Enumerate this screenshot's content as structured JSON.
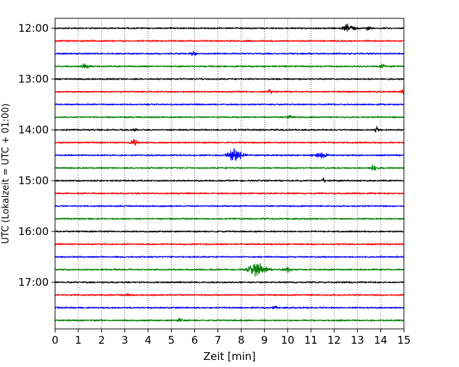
{
  "chart_data": {
    "type": "line",
    "title": "",
    "xlabel": "Zeit  [min]",
    "ylabel": "UTC (Lokalzeit = UTC + 01:00)",
    "xlim": [
      0,
      15
    ],
    "x_ticks": [
      "0",
      "1",
      "2",
      "3",
      "4",
      "5",
      "6",
      "7",
      "8",
      "9",
      "10",
      "11",
      "12",
      "13",
      "14",
      "15"
    ],
    "y_ticks": [
      "12:00",
      "13:00",
      "14:00",
      "15:00",
      "16:00",
      "17:00"
    ],
    "y_tick_traces": [
      0,
      4,
      8,
      12,
      16,
      20
    ],
    "grid": "vertical dotted lines at every minute",
    "trace_interval_minutes": 15,
    "start_time": "12:00",
    "trace_colors": [
      "#000000",
      "#ff0000",
      "#0000ff",
      "#008000"
    ],
    "traces": [
      {
        "start": "12:00",
        "color": "#000000",
        "events": [
          {
            "t": 12.5,
            "amp": 1.0,
            "dur": 0.6
          },
          {
            "t": 13.4,
            "amp": 0.4,
            "dur": 0.3
          }
        ]
      },
      {
        "start": "12:15",
        "color": "#ff0000",
        "events": []
      },
      {
        "start": "12:30",
        "color": "#0000ff",
        "events": [
          {
            "t": 5.9,
            "amp": 0.5,
            "dur": 0.3
          }
        ]
      },
      {
        "start": "12:45",
        "color": "#008000",
        "events": [
          {
            "t": 1.2,
            "amp": 0.6,
            "dur": 0.4
          },
          {
            "t": 14.0,
            "amp": 0.4,
            "dur": 0.3
          }
        ]
      },
      {
        "start": "13:00",
        "color": "#000000",
        "events": []
      },
      {
        "start": "13:15",
        "color": "#ff0000",
        "events": [
          {
            "t": 9.2,
            "amp": 0.7,
            "dur": 0.2
          },
          {
            "t": 14.9,
            "amp": 0.6,
            "dur": 0.2
          }
        ]
      },
      {
        "start": "13:30",
        "color": "#0000ff",
        "events": []
      },
      {
        "start": "13:45",
        "color": "#008000",
        "events": [
          {
            "t": 10.0,
            "amp": 0.4,
            "dur": 0.4
          }
        ]
      },
      {
        "start": "14:00",
        "color": "#000000",
        "events": [
          {
            "t": 13.8,
            "amp": 0.8,
            "dur": 0.2
          },
          {
            "t": 3.4,
            "amp": 0.3,
            "dur": 0.2
          }
        ]
      },
      {
        "start": "14:15",
        "color": "#ff0000",
        "events": [
          {
            "t": 3.3,
            "amp": 0.8,
            "dur": 0.4
          }
        ]
      },
      {
        "start": "14:30",
        "color": "#0000ff",
        "events": [
          {
            "t": 7.6,
            "amp": 1.6,
            "dur": 0.8
          },
          {
            "t": 11.3,
            "amp": 0.6,
            "dur": 0.7
          }
        ]
      },
      {
        "start": "14:45",
        "color": "#008000",
        "events": [
          {
            "t": 13.6,
            "amp": 0.8,
            "dur": 0.4
          }
        ]
      },
      {
        "start": "15:00",
        "color": "#000000",
        "events": [
          {
            "t": 11.5,
            "amp": 0.6,
            "dur": 0.2
          }
        ]
      },
      {
        "start": "15:15",
        "color": "#ff0000",
        "events": []
      },
      {
        "start": "15:30",
        "color": "#0000ff",
        "events": []
      },
      {
        "start": "15:45",
        "color": "#008000",
        "events": []
      },
      {
        "start": "16:00",
        "color": "#000000",
        "events": []
      },
      {
        "start": "16:15",
        "color": "#ff0000",
        "events": []
      },
      {
        "start": "16:30",
        "color": "#0000ff",
        "events": []
      },
      {
        "start": "16:45",
        "color": "#008000",
        "events": [
          {
            "t": 8.5,
            "amp": 1.8,
            "dur": 0.9
          },
          {
            "t": 9.9,
            "amp": 0.6,
            "dur": 0.4
          }
        ]
      },
      {
        "start": "17:00",
        "color": "#000000",
        "events": []
      },
      {
        "start": "17:15",
        "color": "#ff0000",
        "events": [
          {
            "t": 3.1,
            "amp": 0.5,
            "dur": 0.2
          }
        ]
      },
      {
        "start": "17:30",
        "color": "#0000ff",
        "events": [
          {
            "t": 9.4,
            "amp": 0.6,
            "dur": 0.2
          }
        ]
      },
      {
        "start": "17:45",
        "color": "#008000",
        "events": [
          {
            "t": 5.3,
            "amp": 0.4,
            "dur": 0.3
          }
        ]
      }
    ]
  }
}
